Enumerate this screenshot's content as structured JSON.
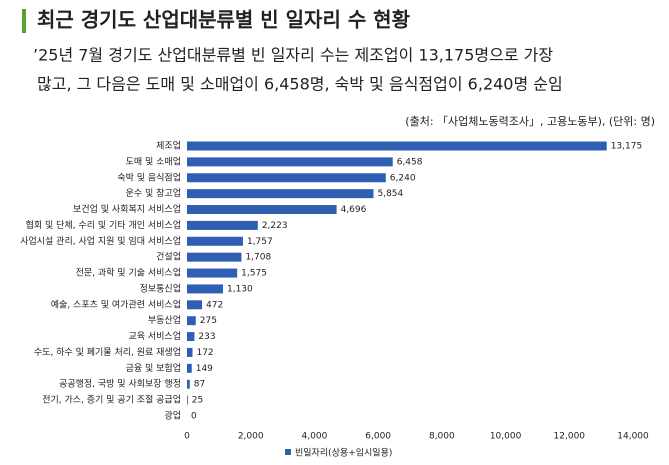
{
  "chart_data": {
    "type": "hbar",
    "title": "최근 경기도 산업대분류별 빈 일자리 수 현황",
    "subtitle": [
      "’25년 7월 경기도 산업대분류별 빈 일자리 수는 제조업이 13,175명으로 가장",
      "많고, 그 다음은 도매 및 소매업이 6,458명, 숙박 및 음식점업이 6,240명 순임"
    ],
    "source": "(출처: 「사업체노동력조사」, 고용노동부), (단위: 명)",
    "categories": [
      "제조업",
      "도매 및 소매업",
      "숙박 및 음식점업",
      "운수 및 창고업",
      "보건업 및 사회복지 서비스업",
      "협회 및 단체, 수리 및 기타 개인 서비스업",
      "사업시설 관리, 사업 지원 및 임대 서비스업",
      "건설업",
      "전문, 과학 및 기술 서비스업",
      "정보통신업",
      "예술, 스포츠 및 여가관련 서비스업",
      "부동산업",
      "교육 서비스업",
      "수도, 하수 및 폐기물 처리, 원료 재생업",
      "금융 및 보험업",
      "공공행정, 국방 및 사회보장 행정",
      "전기, 가스, 증기 및 공기 조절 공급업",
      "광업"
    ],
    "series": [
      {
        "name": "빈일자리(상용+임시일용)",
        "color": "#2f5fb3",
        "values": [
          13175,
          6458,
          6240,
          5854,
          4696,
          2223,
          1757,
          1708,
          1575,
          1130,
          472,
          275,
          233,
          172,
          149,
          87,
          25,
          0
        ],
        "value_labels": [
          "13,175",
          "6,458",
          "6,240",
          "5,854",
          "4,696",
          "2,223",
          "1,757",
          "1,708",
          "1,575",
          "1,130",
          "472",
          "275",
          "233",
          "172",
          "149",
          "87",
          "25",
          "0"
        ]
      }
    ],
    "xlim": [
      0,
      14000
    ],
    "xticks": [
      0,
      {
        "value": 2000,
        "label": "2,000"
      },
      {
        "value": 4000,
        "label": "4,000"
      },
      {
        "value": 6000,
        "label": "6,000"
      },
      {
        "value": 8000,
        "label": "8,000"
      },
      {
        "value": 10000,
        "label": "10,000"
      },
      {
        "value": 12000,
        "label": "12,000"
      },
      {
        "value": 14000,
        "label": "14,000"
      }
    ]
  }
}
